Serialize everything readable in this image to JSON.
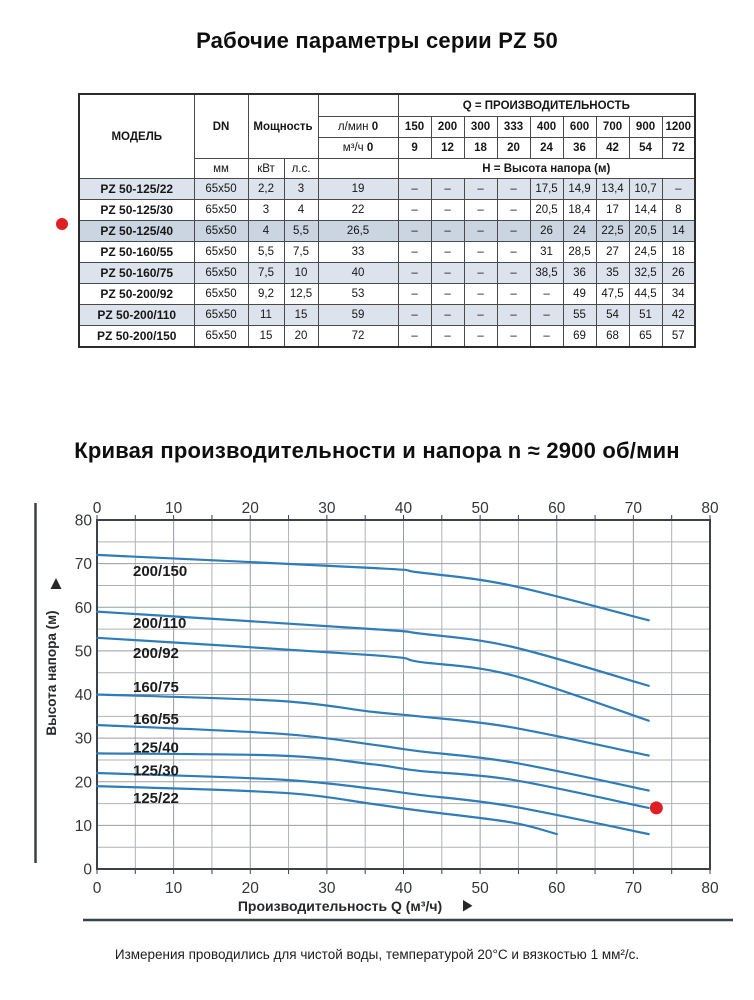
{
  "page": {
    "table_title": "Рабочие параметры серии PZ 50",
    "chart_title": "Кривая производительности и напора n ≈ 2900 об/мин",
    "footnote": "Измерения проводились для чистой воды, температурой 20°C и вязкостью 1 мм²/с."
  },
  "colors": {
    "accent_red": "#df1f26",
    "curve_blue": "#2e7cba",
    "row_shade": "#dde3ed",
    "row_highlight": "#cbd4e1",
    "grid_minor": "#aeb3b9",
    "grid_major": "#979da4",
    "axis_dark": "#3d4247",
    "tick_text": "#333638"
  },
  "table": {
    "headers": {
      "model": "МОДЕЛЬ",
      "dn": "DN",
      "power": "Мощность",
      "q_group": "Q = ПРОИЗВОДИТЕЛЬНОСТЬ",
      "unit_mm": "мм",
      "unit_kw": "кВт",
      "unit_hp": "л.с.",
      "head_group": "H = Высота напора (м)"
    },
    "flow_rows": [
      {
        "unit": "л/мин",
        "zero": "0",
        "values": [
          "150",
          "200",
          "300",
          "333",
          "400",
          "600",
          "700",
          "900",
          "1200"
        ]
      },
      {
        "unit": "м³/ч",
        "zero": "0",
        "values": [
          "9",
          "12",
          "18",
          "20",
          "24",
          "36",
          "42",
          "54",
          "72"
        ]
      }
    ],
    "rows": [
      {
        "model": "PZ 50-125/22",
        "dn": "65x50",
        "kw": "2,2",
        "hp": "3",
        "h0": "19",
        "heads": [
          "–",
          "–",
          "–",
          "–",
          "17,5",
          "14,9",
          "13,4",
          "10,7",
          "–"
        ],
        "shaded": true,
        "marked": false
      },
      {
        "model": "PZ 50-125/30",
        "dn": "65x50",
        "kw": "3",
        "hp": "4",
        "h0": "22",
        "heads": [
          "–",
          "–",
          "–",
          "–",
          "20,5",
          "18,4",
          "17",
          "14,4",
          "8"
        ],
        "shaded": false,
        "marked": false
      },
      {
        "model": "PZ 50-125/40",
        "dn": "65x50",
        "kw": "4",
        "hp": "5,5",
        "h0": "26,5",
        "heads": [
          "–",
          "–",
          "–",
          "–",
          "26",
          "24",
          "22,5",
          "20,5",
          "14"
        ],
        "shaded": true,
        "marked": true
      },
      {
        "model": "PZ 50-160/55",
        "dn": "65x50",
        "kw": "5,5",
        "hp": "7,5",
        "h0": "33",
        "heads": [
          "–",
          "–",
          "–",
          "–",
          "31",
          "28,5",
          "27",
          "24,5",
          "18"
        ],
        "shaded": false,
        "marked": false
      },
      {
        "model": "PZ 50-160/75",
        "dn": "65x50",
        "kw": "7,5",
        "hp": "10",
        "h0": "40",
        "heads": [
          "–",
          "–",
          "–",
          "–",
          "38,5",
          "36",
          "35",
          "32,5",
          "26"
        ],
        "shaded": true,
        "marked": false
      },
      {
        "model": "PZ 50-200/92",
        "dn": "65x50",
        "kw": "9,2",
        "hp": "12,5",
        "h0": "53",
        "heads": [
          "–",
          "–",
          "–",
          "–",
          "–",
          "49",
          "47,5",
          "44,5",
          "34"
        ],
        "shaded": false,
        "marked": false
      },
      {
        "model": "PZ 50-200/110",
        "dn": "65x50",
        "kw": "11",
        "hp": "15",
        "h0": "59",
        "heads": [
          "–",
          "–",
          "–",
          "–",
          "–",
          "55",
          "54",
          "51",
          "42"
        ],
        "shaded": true,
        "marked": false
      },
      {
        "model": "PZ 50-200/150",
        "dn": "65x50",
        "kw": "15",
        "hp": "20",
        "h0": "72",
        "heads": [
          "–",
          "–",
          "–",
          "–",
          "–",
          "69",
          "68",
          "65",
          "57"
        ],
        "shaded": false,
        "marked": false
      }
    ]
  },
  "chart_data": {
    "type": "line",
    "title": "Кривая производительности и напора n ≈ 2900 об/мин",
    "xlabel": "Производительность Q (м³/ч)",
    "ylabel": "Высота напора (м)",
    "xlim": [
      0,
      80
    ],
    "ylim": [
      0,
      80
    ],
    "x_ticks": [
      0,
      10,
      20,
      30,
      40,
      50,
      60,
      70,
      80
    ],
    "y_ticks": [
      0,
      10,
      20,
      30,
      40,
      50,
      60,
      70,
      80
    ],
    "minor_grid_step": 5,
    "grid": true,
    "legend_position": "on-curve-labels",
    "marker": {
      "x": 73,
      "y": 14,
      "color": "#df1f26"
    },
    "series": [
      {
        "name": "200/150",
        "x": [
          0,
          36,
          42,
          54,
          72
        ],
        "y": [
          72,
          69,
          68,
          65,
          57
        ],
        "label_at": [
          4.7,
          67.2
        ]
      },
      {
        "name": "200/110",
        "x": [
          0,
          36,
          42,
          54,
          72
        ],
        "y": [
          59,
          55,
          54,
          51,
          42
        ],
        "label_at": [
          4.7,
          55.2
        ]
      },
      {
        "name": "200/92",
        "x": [
          0,
          36,
          42,
          54,
          72
        ],
        "y": [
          53,
          49,
          47.5,
          44.5,
          34
        ],
        "label_at": [
          4.7,
          48.4
        ]
      },
      {
        "name": "160/75",
        "x": [
          0,
          24,
          36,
          42,
          54,
          72
        ],
        "y": [
          40,
          38.5,
          36,
          35,
          32.5,
          26
        ],
        "label_at": [
          4.7,
          40.6
        ]
      },
      {
        "name": "160/55",
        "x": [
          0,
          24,
          36,
          42,
          54,
          72
        ],
        "y": [
          33,
          31,
          28.5,
          27,
          24.5,
          18
        ],
        "label_at": [
          4.7,
          33.2
        ]
      },
      {
        "name": "125/40",
        "x": [
          0,
          24,
          36,
          42,
          54,
          72
        ],
        "y": [
          26.5,
          26,
          24,
          22.5,
          20.5,
          14
        ],
        "label_at": [
          4.7,
          26.7
        ]
      },
      {
        "name": "125/30",
        "x": [
          0,
          24,
          36,
          42,
          54,
          72
        ],
        "y": [
          22,
          20.5,
          18.4,
          17,
          14.4,
          8
        ],
        "label_at": [
          4.7,
          21.4
        ]
      },
      {
        "name": "125/22",
        "x": [
          0,
          24,
          36,
          42,
          54,
          60
        ],
        "y": [
          19,
          17.5,
          14.9,
          13.4,
          10.7,
          8
        ],
        "label_at": [
          4.7,
          15.1
        ]
      }
    ]
  }
}
